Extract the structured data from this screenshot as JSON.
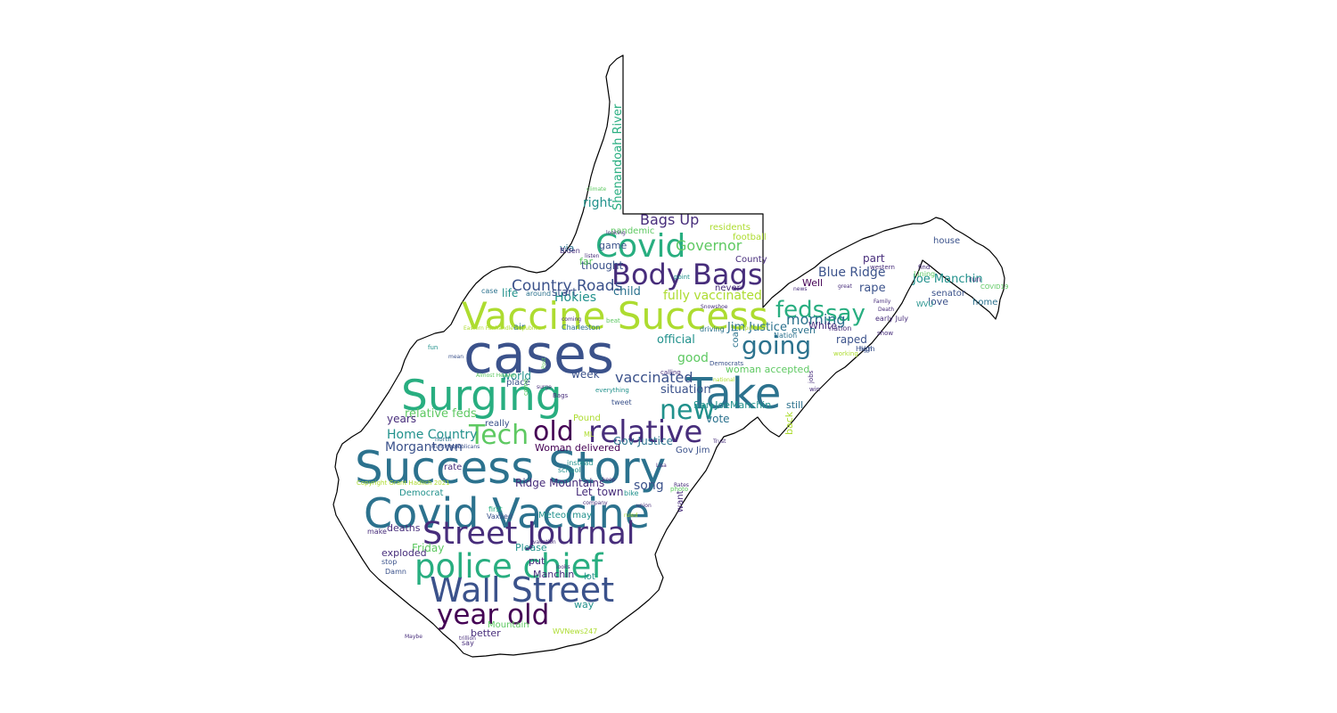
{
  "figure": {
    "title": "",
    "shape": "West Virginia state outline",
    "colors": {
      "background": "#ffffff",
      "outline": "#000000",
      "palette": [
        "#3b528b",
        "#2c728e",
        "#21918c",
        "#28ae80",
        "#5ec962",
        "#addc30",
        "#440154",
        "#472d7b"
      ]
    }
  },
  "words": [
    {
      "text": "cases",
      "weight": 100,
      "color": "#3b528b"
    },
    {
      "text": "Success Story",
      "weight": 84,
      "color": "#2c728e"
    },
    {
      "text": "Take",
      "weight": 80,
      "color": "#2c728e"
    },
    {
      "text": "Surging",
      "weight": 78,
      "color": "#28ae80"
    },
    {
      "text": "Covid Vaccine",
      "weight": 76,
      "color": "#2c728e"
    },
    {
      "text": "Vaccine Success",
      "weight": 70,
      "color": "#addc30"
    },
    {
      "text": "Wall Street",
      "weight": 64,
      "color": "#3b528b"
    },
    {
      "text": "police chief",
      "weight": 62,
      "color": "#28ae80"
    },
    {
      "text": "Covid",
      "weight": 60,
      "color": "#28ae80"
    },
    {
      "text": "Street Journal",
      "weight": 58,
      "color": "#472d7b"
    },
    {
      "text": "relative",
      "weight": 56,
      "color": "#472d7b"
    },
    {
      "text": "Body Bags",
      "weight": 54,
      "color": "#472d7b"
    },
    {
      "text": "year old",
      "weight": 52,
      "color": "#440154"
    },
    {
      "text": "Tech",
      "weight": 50,
      "color": "#5ec962"
    },
    {
      "text": "old",
      "weight": 50,
      "color": "#440154"
    },
    {
      "text": "new",
      "weight": 50,
      "color": "#21918c"
    },
    {
      "text": "going",
      "weight": 46,
      "color": "#2c728e"
    },
    {
      "text": "feds",
      "weight": 44,
      "color": "#28ae80"
    },
    {
      "text": "say",
      "weight": 44,
      "color": "#28ae80"
    },
    {
      "text": "Country Roads",
      "weight": 28,
      "color": "#3b528b"
    },
    {
      "text": "vaccinated",
      "weight": 26,
      "color": "#3b528b"
    },
    {
      "text": "Bags Up",
      "weight": 26,
      "color": "#472d7b"
    },
    {
      "text": "Governor",
      "weight": 26,
      "color": "#5ec962"
    },
    {
      "text": "morning",
      "weight": 26,
      "color": "#2c728e"
    },
    {
      "text": "Hokies",
      "weight": 24,
      "color": "#21918c"
    },
    {
      "text": "right",
      "weight": 24,
      "color": "#21918c"
    },
    {
      "text": "fully vaccinated",
      "weight": 24,
      "color": "#addc30"
    },
    {
      "text": "Blue Ridge",
      "weight": 24,
      "color": "#3b528b"
    },
    {
      "text": "Home Country",
      "weight": 24,
      "color": "#21918c"
    },
    {
      "text": "Morgantown",
      "weight": 24,
      "color": "#3b528b"
    },
    {
      "text": "relative feds",
      "weight": 22,
      "color": "#5ec962"
    },
    {
      "text": "Shenandoah River",
      "weight": 22,
      "color": "#28ae80"
    },
    {
      "text": "good",
      "weight": 24,
      "color": "#5ec962"
    },
    {
      "text": "song",
      "weight": 24,
      "color": "#3b528b"
    },
    {
      "text": "situation",
      "weight": 22,
      "color": "#3b528b"
    },
    {
      "text": "official",
      "weight": 22,
      "color": "#21918c"
    },
    {
      "text": "Joe Manchin",
      "weight": 22,
      "color": "#21918c"
    },
    {
      "text": "Jim Justice",
      "weight": 22,
      "color": "#2c728e"
    },
    {
      "text": "child",
      "weight": 22,
      "color": "#2c728e"
    },
    {
      "text": "thought",
      "weight": 20,
      "color": "#3b528b"
    },
    {
      "text": "start",
      "weight": 20,
      "color": "#3b528b"
    },
    {
      "text": "life",
      "weight": 20,
      "color": "#21918c"
    },
    {
      "text": "world",
      "weight": 20,
      "color": "#21918c"
    },
    {
      "text": "week",
      "weight": 20,
      "color": "#3b528b"
    },
    {
      "text": "vote",
      "weight": 20,
      "color": "#2c728e"
    },
    {
      "text": "Gov Justice",
      "weight": 20,
      "color": "#2c728e"
    },
    {
      "text": "Woman delivered",
      "weight": 18,
      "color": "#440154"
    },
    {
      "text": "woman accepted",
      "weight": 18,
      "color": "#5ec962"
    },
    {
      "text": "Sen JoeManchin",
      "weight": 18,
      "color": "#21918c"
    },
    {
      "text": "years",
      "weight": 20,
      "color": "#472d7b"
    },
    {
      "text": "Friday",
      "weight": 20,
      "color": "#5ec962"
    },
    {
      "text": "Ridge Mountains",
      "weight": 20,
      "color": "#472d7b"
    },
    {
      "text": "Let",
      "weight": 20,
      "color": "#472d7b"
    },
    {
      "text": "town",
      "weight": 20,
      "color": "#472d7b"
    },
    {
      "text": "Manchin",
      "weight": 18,
      "color": "#472d7b"
    },
    {
      "text": "Please",
      "weight": 18,
      "color": "#21918c"
    },
    {
      "text": "deaths",
      "weight": 18,
      "color": "#472d7b"
    },
    {
      "text": "put",
      "weight": 18,
      "color": "#472d7b"
    },
    {
      "text": "exploded",
      "weight": 18,
      "color": "#472d7b"
    },
    {
      "text": "way",
      "weight": 18,
      "color": "#21918c"
    },
    {
      "text": "better",
      "weight": 18,
      "color": "#472d7b"
    },
    {
      "text": "Mountain",
      "weight": 16,
      "color": "#5ec962"
    },
    {
      "text": "WVNews247",
      "weight": 14,
      "color": "#addc30"
    },
    {
      "text": "lot",
      "weight": 16,
      "color": "#21918c"
    },
    {
      "text": "Meteor may",
      "weight": 16,
      "color": "#21918c"
    },
    {
      "text": "rape",
      "weight": 22,
      "color": "#3b528b"
    },
    {
      "text": "raped",
      "weight": 20,
      "color": "#3b528b"
    },
    {
      "text": "White",
      "weight": 18,
      "color": "#472d7b"
    },
    {
      "text": "Well",
      "weight": 18,
      "color": "#440154"
    },
    {
      "text": "even",
      "weight": 18,
      "color": "#2c728e"
    },
    {
      "text": "still",
      "weight": 18,
      "color": "#2c728e"
    },
    {
      "text": "back",
      "weight": 18,
      "color": "#addc30"
    },
    {
      "text": "part",
      "weight": 20,
      "color": "#472d7b"
    },
    {
      "text": "love",
      "weight": 18,
      "color": "#3b528b"
    },
    {
      "text": "senator",
      "weight": 16,
      "color": "#3b528b"
    },
    {
      "text": "house",
      "weight": 16,
      "color": "#3b528b"
    },
    {
      "text": "home",
      "weight": 16,
      "color": "#2c728e"
    },
    {
      "text": "County",
      "weight": 16,
      "color": "#472d7b"
    },
    {
      "text": "football",
      "weight": 16,
      "color": "#addc30"
    },
    {
      "text": "residents",
      "weight": 16,
      "color": "#addc30"
    },
    {
      "text": "pandemic",
      "weight": 16,
      "color": "#5ec962"
    },
    {
      "text": "never",
      "weight": 16,
      "color": "#472d7b"
    },
    {
      "text": "game",
      "weight": 18,
      "color": "#3b528b"
    },
    {
      "text": "via",
      "weight": 18,
      "color": "#2c728e"
    },
    {
      "text": "far",
      "weight": 18,
      "color": "#5ec962"
    },
    {
      "text": "air",
      "weight": 16,
      "color": "#2c728e"
    },
    {
      "text": "case",
      "weight": 14,
      "color": "#2c728e"
    },
    {
      "text": "around",
      "weight": 14,
      "color": "#2c728e"
    },
    {
      "text": "Biden",
      "weight": 14,
      "color": "#472d7b"
    },
    {
      "text": "Charleston",
      "weight": 14,
      "color": "#2c728e"
    },
    {
      "text": "driving",
      "weight": 14,
      "color": "#2c728e"
    },
    {
      "text": "coal",
      "weight": 16,
      "color": "#2c728e"
    },
    {
      "text": "Pound",
      "weight": 16,
      "color": "#addc30"
    },
    {
      "text": "tweet",
      "weight": 14,
      "color": "#3b528b"
    },
    {
      "text": "place",
      "weight": 16,
      "color": "#3b528b"
    },
    {
      "text": "really",
      "weight": 16,
      "color": "#3b528b"
    },
    {
      "text": "rate",
      "weight": 16,
      "color": "#472d7b"
    },
    {
      "text": "instead",
      "weight": 14,
      "color": "#21918c"
    },
    {
      "text": "school",
      "weight": 14,
      "color": "#21918c"
    },
    {
      "text": "bike",
      "weight": 14,
      "color": "#21918c"
    },
    {
      "text": "Gov Jim",
      "weight": 16,
      "color": "#3b528b"
    },
    {
      "text": "want",
      "weight": 16,
      "color": "#472d7b"
    },
    {
      "text": "Democrat",
      "weight": 16,
      "color": "#21918c"
    },
    {
      "text": "Copyright Grant Hadlich 2021",
      "weight": 12,
      "color": "#addc30"
    },
    {
      "text": "Eastern Panhandle Republican",
      "weight": 10,
      "color": "#addc30"
    },
    {
      "text": "Vaxxed",
      "weight": 14,
      "color": "#3b528b"
    },
    {
      "text": "first",
      "weight": 14,
      "color": "#28ae80"
    },
    {
      "text": "make",
      "weight": 14,
      "color": "#472d7b"
    },
    {
      "text": "stop",
      "weight": 14,
      "color": "#3b528b"
    },
    {
      "text": "Damn",
      "weight": 14,
      "color": "#3b528b"
    },
    {
      "text": "say",
      "weight": 14,
      "color": "#472d7b"
    },
    {
      "text": "Nation",
      "weight": 14,
      "color": "#2c728e"
    },
    {
      "text": "high",
      "weight": 14,
      "color": "#3b528b"
    },
    {
      "text": "High",
      "weight": 14,
      "color": "#3b528b"
    },
    {
      "text": "early July",
      "weight": 14,
      "color": "#472d7b"
    },
    {
      "text": "nation",
      "weight": 14,
      "color": "#472d7b"
    },
    {
      "text": "show",
      "weight": 12,
      "color": "#472d7b"
    },
    {
      "text": "WVU",
      "weight": 14,
      "color": "#21918c"
    },
    {
      "text": "Lining",
      "weight": 14,
      "color": "#5ec962"
    },
    {
      "text": "COVID19",
      "weight": 12,
      "color": "#5ec962"
    },
    {
      "text": "run",
      "weight": 14,
      "color": "#472d7b"
    },
    {
      "text": "find",
      "weight": 12,
      "color": "#472d7b"
    },
    {
      "text": "western",
      "weight": 12,
      "color": "#472d7b"
    },
    {
      "text": "working",
      "weight": 12,
      "color": "#addc30"
    },
    {
      "text": "Democrats",
      "weight": 12,
      "color": "#3b528b"
    },
    {
      "text": "win",
      "weight": 12,
      "color": "#472d7b"
    },
    {
      "text": "point",
      "weight": 12,
      "color": "#21918c"
    },
    {
      "text": "fun",
      "weight": 12,
      "color": "#21918c"
    },
    {
      "text": "mean",
      "weight": 10,
      "color": "#3b528b"
    },
    {
      "text": "north",
      "weight": 12,
      "color": "#2c728e"
    },
    {
      "text": "Huntington",
      "weight": 10,
      "color": "#3b528b"
    },
    {
      "text": "Republicans",
      "weight": 10,
      "color": "#3b528b"
    },
    {
      "text": "everything",
      "weight": 12,
      "color": "#21918c"
    },
    {
      "text": "Almost Heaven",
      "weight": 10,
      "color": "#5ec962"
    },
    {
      "text": "calling",
      "weight": 12,
      "color": "#472d7b"
    },
    {
      "text": "come",
      "weight": 12,
      "color": "#5ec962"
    },
    {
      "text": "jobs",
      "weight": 12,
      "color": "#472d7b"
    },
    {
      "text": "listen",
      "weight": 10,
      "color": "#472d7b"
    },
    {
      "text": "Death",
      "weight": 10,
      "color": "#472d7b"
    },
    {
      "text": "Family",
      "weight": 10,
      "color": "#472d7b"
    },
    {
      "text": "news",
      "weight": 10,
      "color": "#472d7b"
    },
    {
      "text": "great",
      "weight": 10,
      "color": "#472d7b"
    },
    {
      "text": "Snowshoe",
      "weight": 10,
      "color": "#472d7b"
    },
    {
      "text": "looking",
      "weight": 10,
      "color": "#472d7b"
    },
    {
      "text": "climate",
      "weight": 10,
      "color": "#5ec962"
    },
    {
      "text": "ML",
      "weight": 14,
      "color": "#addc30"
    },
    {
      "text": "Trust",
      "weight": 10,
      "color": "#472d7b"
    },
    {
      "text": "union",
      "weight": 10,
      "color": "#472d7b"
    },
    {
      "text": "trillion",
      "weight": 10,
      "color": "#472d7b"
    },
    {
      "text": "Maybe",
      "weight": 10,
      "color": "#472d7b"
    },
    {
      "text": "Post",
      "weight": 10,
      "color": "#5ec962"
    },
    {
      "text": "photo",
      "weight": 12,
      "color": "#5ec962"
    },
    {
      "text": "beat",
      "weight": 12,
      "color": "#5ec962"
    },
    {
      "text": "coming",
      "weight": 10,
      "color": "#472d7b"
    },
    {
      "text": "Bags",
      "weight": 12,
      "color": "#472d7b"
    },
    {
      "text": "Republican",
      "weight": 10,
      "color": "#addc30"
    },
    {
      "text": "national",
      "weight": 10,
      "color": "#addc30"
    },
    {
      "text": "ruled",
      "weight": 10,
      "color": "#addc30"
    },
    {
      "text": "vacation",
      "weight": 10,
      "color": "#472d7b"
    },
    {
      "text": "Lisa",
      "weight": 10,
      "color": "#472d7b"
    },
    {
      "text": "Rates",
      "weight": 10,
      "color": "#472d7b"
    },
    {
      "text": "company",
      "weight": 10,
      "color": "#472d7b"
    },
    {
      "text": "looks",
      "weight": 10,
      "color": "#472d7b"
    },
    {
      "text": "surge",
      "weight": 10,
      "color": "#472d7b"
    },
    {
      "text": "keep",
      "weight": 10,
      "color": "#472d7b"
    },
    {
      "text": "enough",
      "weight": 10,
      "color": "#472d7b"
    }
  ]
}
